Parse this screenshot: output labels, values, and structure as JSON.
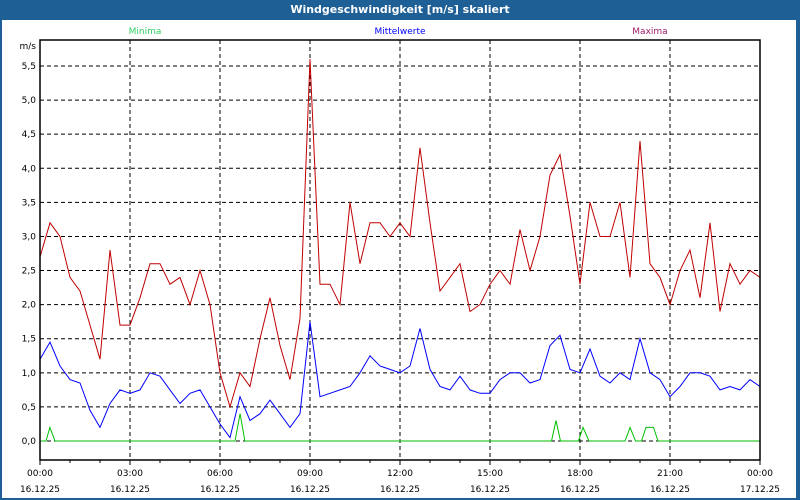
{
  "window": {
    "title": "Windgeschwindigkeit [m/s] skaliert"
  },
  "colors": {
    "minima": "#00c000",
    "mittel": "#0000ff",
    "maxima": "#c00000",
    "legend_maxima": "#a0206a",
    "legend_minima": "#30d060"
  },
  "chart_data": {
    "type": "line",
    "title": "Windgeschwindigkeit [m/s] skaliert",
    "ylabel": "m/s",
    "xlabel": "",
    "ylim": [
      -0.3,
      5.9
    ],
    "xlim_hours": [
      0,
      24
    ],
    "grid": true,
    "legend_placement": "top",
    "y_ticks": [
      "0,0",
      "0,5",
      "1,0",
      "1,5",
      "2,0",
      "2,5",
      "3,0",
      "3,5",
      "4,0",
      "4,5",
      "5,0",
      "5,5"
    ],
    "y_tick_values": [
      0,
      0.5,
      1,
      1.5,
      2,
      2.5,
      3,
      3.5,
      4,
      4.5,
      5,
      5.5
    ],
    "x_ticks": [
      {
        "time": "00:00",
        "date": "16.12.25"
      },
      {
        "time": "03:00",
        "date": "16.12.25"
      },
      {
        "time": "06:00",
        "date": "16.12.25"
      },
      {
        "time": "09:00",
        "date": "16.12.25"
      },
      {
        "time": "12:00",
        "date": "16.12.25"
      },
      {
        "time": "15:00",
        "date": "16.12.25"
      },
      {
        "time": "18:00",
        "date": "16.12.25"
      },
      {
        "time": "21:00",
        "date": "16.12.25"
      },
      {
        "time": "00:00",
        "date": "17.12.25"
      }
    ],
    "sample_interval_hours": 0.3333,
    "series": [
      {
        "name": "Minima",
        "color": "#00c000",
        "points": [
          [
            0,
            0
          ],
          [
            0.2,
            0
          ],
          [
            0.33,
            0.2
          ],
          [
            0.5,
            0
          ],
          [
            6.5,
            0
          ],
          [
            6.67,
            0.4
          ],
          [
            6.83,
            0
          ],
          [
            17.05,
            0
          ],
          [
            17.2,
            0.3
          ],
          [
            17.35,
            0
          ],
          [
            17.95,
            0
          ],
          [
            18.1,
            0.2
          ],
          [
            18.3,
            0
          ],
          [
            19.5,
            0
          ],
          [
            19.67,
            0.2
          ],
          [
            19.85,
            0
          ],
          [
            20.05,
            0
          ],
          [
            20.2,
            0.2
          ],
          [
            20.45,
            0.2
          ],
          [
            20.6,
            0
          ],
          [
            24,
            0
          ]
        ]
      },
      {
        "name": "Mittelwerte",
        "color": "#0000ff",
        "values": [
          1.2,
          1.45,
          1.1,
          0.9,
          0.85,
          0.45,
          0.2,
          0.55,
          0.75,
          0.7,
          0.75,
          1.0,
          0.95,
          0.75,
          0.55,
          0.7,
          0.75,
          0.5,
          0.25,
          0.05,
          0.65,
          0.3,
          0.4,
          0.6,
          0.4,
          0.2,
          0.4,
          1.75,
          0.65,
          0.7,
          0.75,
          0.8,
          1.0,
          1.25,
          1.1,
          1.05,
          1.0,
          1.1,
          1.65,
          1.05,
          0.8,
          0.75,
          0.95,
          0.75,
          0.7,
          0.7,
          0.9,
          1.0,
          1.0,
          0.85,
          0.9,
          1.4,
          1.55,
          1.05,
          1.0,
          1.35,
          0.95,
          0.85,
          1.0,
          0.9,
          1.5,
          1.0,
          0.9,
          0.65,
          0.8,
          1.0,
          1.0,
          0.95,
          0.75,
          0.8,
          0.75,
          0.9,
          0.8
        ]
      },
      {
        "name": "Maxima",
        "color": "#c00000",
        "values": [
          2.7,
          3.2,
          3.0,
          2.4,
          2.2,
          1.7,
          1.2,
          2.8,
          1.7,
          1.7,
          2.1,
          2.6,
          2.6,
          2.3,
          2.4,
          2.0,
          2.5,
          2.0,
          1.0,
          0.5,
          1.0,
          0.8,
          1.5,
          2.1,
          1.4,
          0.9,
          1.8,
          5.6,
          2.3,
          2.3,
          2.0,
          3.5,
          2.6,
          3.2,
          3.2,
          3.0,
          3.2,
          3.0,
          4.3,
          3.2,
          2.2,
          2.4,
          2.6,
          1.9,
          2.0,
          2.3,
          2.5,
          2.3,
          3.1,
          2.5,
          3.0,
          3.9,
          4.2,
          3.3,
          2.3,
          3.5,
          3.0,
          3.0,
          3.5,
          2.4,
          4.4,
          2.6,
          2.4,
          2.0,
          2.5,
          2.8,
          2.1,
          3.2,
          1.9,
          2.6,
          2.3,
          2.5,
          2.4
        ]
      }
    ],
    "legend": [
      "Minima",
      "Mittelwerte",
      "Maxima"
    ]
  }
}
